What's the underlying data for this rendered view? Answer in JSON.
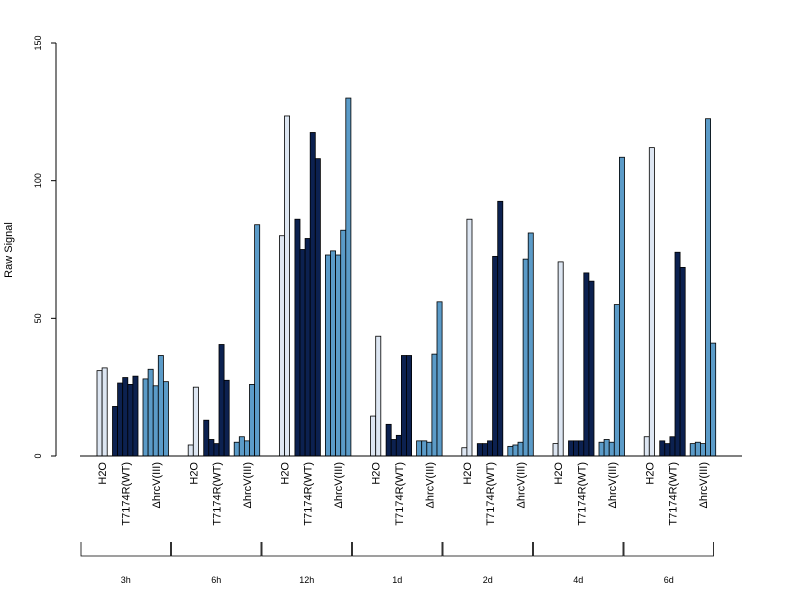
{
  "chart_data": {
    "type": "bar",
    "ylabel": "Raw Signal",
    "ylim": [
      0,
      150
    ],
    "yticks": [
      0,
      50,
      100,
      150
    ],
    "treatments": [
      "H2O",
      "T7174R(WT)",
      "ΔhrcV(III)"
    ],
    "colors": {
      "H2O": "#dde6f2",
      "T7174R(WT)": "#0c2150",
      "ΔhrcV(III)": "#5b9bc8"
    },
    "timepoints": [
      {
        "label": "3h",
        "groups": [
          [
            31,
            32
          ],
          [
            18,
            26.5,
            28.5,
            26,
            29
          ],
          [
            28,
            31.5,
            25.5,
            36.5,
            27
          ]
        ]
      },
      {
        "label": "6h",
        "groups": [
          [
            4,
            25
          ],
          [
            13,
            6,
            4.5,
            40.5,
            27.5
          ],
          [
            5,
            7,
            5.5,
            26,
            84
          ]
        ]
      },
      {
        "label": "12h",
        "groups": [
          [
            80,
            123.5
          ],
          [
            86,
            75,
            79,
            117.5,
            108
          ],
          [
            73,
            74.5,
            73,
            82,
            130
          ]
        ]
      },
      {
        "label": "1d",
        "groups": [
          [
            14.5,
            43.5
          ],
          [
            11.5,
            6,
            7.5,
            36.5,
            36.5
          ],
          [
            5.5,
            5.5,
            5,
            37,
            56
          ]
        ]
      },
      {
        "label": "2d",
        "groups": [
          [
            3,
            86
          ],
          [
            4.5,
            4.5,
            5.5,
            72.5,
            92.5
          ],
          [
            3.5,
            4,
            5,
            71.5,
            81
          ]
        ]
      },
      {
        "label": "4d",
        "groups": [
          [
            4.5,
            70.5
          ],
          [
            5.5,
            5.5,
            5.5,
            66.5,
            63.5
          ],
          [
            5,
            6,
            5,
            55,
            108.5
          ]
        ]
      },
      {
        "label": "6d",
        "groups": [
          [
            7,
            112
          ],
          [
            5.5,
            4.5,
            7,
            74,
            68.5
          ],
          [
            4.5,
            5,
            4.5,
            122.5,
            41
          ]
        ]
      }
    ]
  }
}
